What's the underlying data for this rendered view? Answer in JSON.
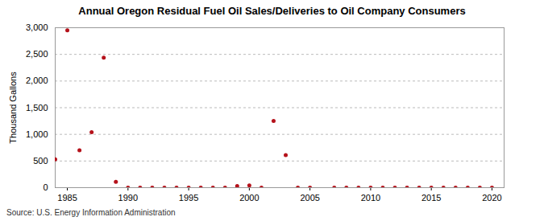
{
  "chart_data": {
    "type": "scatter",
    "title": "Annual Oregon Residual Fuel Oil Sales/Deliveries to Oil Company Consumers",
    "y_label": "Thousand Gallons",
    "source": "Source: U.S. Energy Information Administration",
    "x": [
      1984,
      1985,
      1986,
      1987,
      1988,
      1989,
      1990,
      1991,
      1992,
      1993,
      1994,
      1995,
      1996,
      1997,
      1998,
      1999,
      2000,
      2001,
      2002,
      2003,
      2004,
      2005,
      2006,
      2007,
      2008,
      2009,
      2010,
      2011,
      2012,
      2013,
      2014,
      2015,
      2016,
      2017,
      2018,
      2019,
      2020
    ],
    "values": [
      530,
      2950,
      700,
      1040,
      2440,
      110,
      0,
      0,
      0,
      0,
      0,
      0,
      0,
      0,
      0,
      30,
      40,
      0,
      1250,
      610,
      0,
      0,
      null,
      0,
      0,
      0,
      0,
      0,
      0,
      0,
      0,
      0,
      0,
      0,
      0,
      0,
      0
    ],
    "color": "#b5121b",
    "marker": "circle",
    "xlim": [
      1984,
      2021
    ],
    "xticks": [
      1985,
      1990,
      1995,
      2000,
      2005,
      2010,
      2015,
      2020
    ],
    "ylim": [
      0,
      3000
    ],
    "yticks": [
      0,
      500,
      {
        "value": 1000,
        "label": "1,000"
      },
      {
        "value": 1500,
        "label": "1,500"
      },
      {
        "value": 2000,
        "label": "2,000"
      },
      {
        "value": 2500,
        "label": "2,500"
      },
      {
        "value": 3000,
        "label": "3,000"
      }
    ],
    "grid": true
  }
}
